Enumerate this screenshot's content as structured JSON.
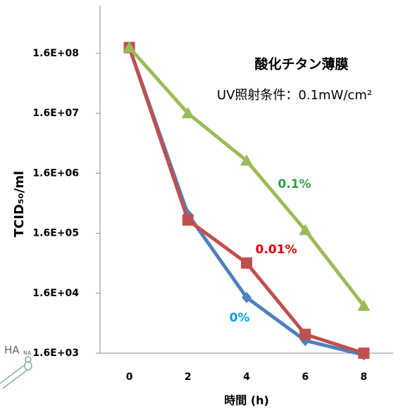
{
  "chart_data": {
    "type": "line",
    "annotations": [
      "酸化チタン薄膜",
      "UV照射条件：0.1mW/cm²"
    ],
    "y_label": "TCID₅₀/ml",
    "x_label": "時間 (h)",
    "icon_labels": [
      "HA",
      "NA"
    ],
    "x": [
      0,
      2,
      4,
      6,
      8
    ],
    "xlim": [
      -1,
      9
    ],
    "xticks": [
      0,
      2,
      4,
      6,
      8
    ],
    "yscale": "log",
    "ylim": [
      1600,
      1000000000
    ],
    "yticks": [
      {
        "value": 1600,
        "label": "1.6E+03"
      },
      {
        "value": 16000,
        "label": "1.6E+04"
      },
      {
        "value": 160000,
        "label": "1.6E+05"
      },
      {
        "value": 1600000,
        "label": "1.6E+06"
      },
      {
        "value": 16000000,
        "label": "1.6E+07"
      },
      {
        "value": 160000000,
        "label": "1.6E+08"
      }
    ],
    "series": [
      {
        "name": "0%",
        "color": "#4f81bd",
        "label_color": "#00a0e0",
        "marker": "diamond",
        "values": [
          200000000,
          330000,
          13600,
          2600,
          1500
        ]
      },
      {
        "name": "0.01%",
        "color": "#c0504d",
        "label_color": "#e00000",
        "marker": "square",
        "values": [
          200000000,
          266000,
          51000,
          3300,
          1600
        ]
      },
      {
        "name": "0.1%",
        "color": "#9bbb59",
        "label_color": "#2ea043",
        "marker": "triangle",
        "values": [
          200000000,
          16000000,
          2600000,
          180000,
          9800
        ]
      }
    ]
  }
}
